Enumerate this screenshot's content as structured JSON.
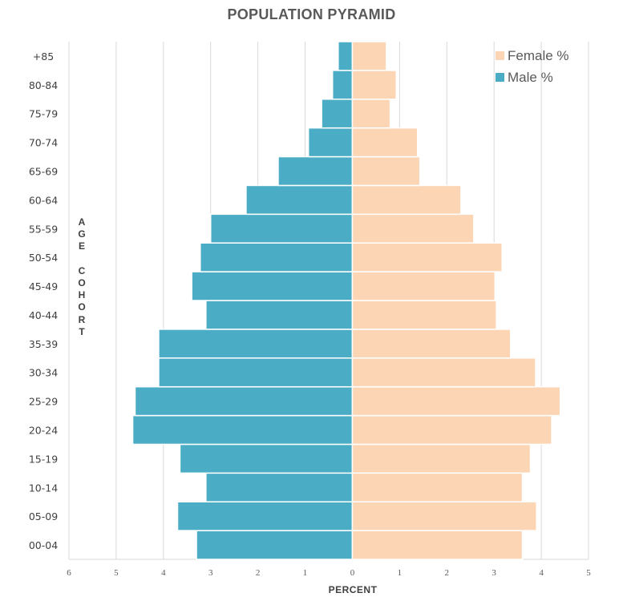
{
  "chart_data": {
    "type": "bar",
    "orientation": "horizontal",
    "title": "POPULATION PYRAMID",
    "xlabel": "PERCENT",
    "ylabel": "AGE COHORT",
    "ylabel_display": "A\nG\nE\n\nC\nO\nH\nO\nR\nT",
    "categories": [
      "00-04",
      "05-09",
      "10-14",
      "15-19",
      "20-24",
      "25-29",
      "30-34",
      "35-39",
      "40-44",
      "45-49",
      "50-54",
      "55-59",
      "60-64",
      "65-69",
      "70-74",
      "75-79",
      "80-84",
      "+85"
    ],
    "series": [
      {
        "name": "Male %",
        "color": "#4bacc6",
        "side": "left",
        "values": [
          3.3,
          3.7,
          3.1,
          3.65,
          4.65,
          4.6,
          4.1,
          4.1,
          3.1,
          3.4,
          3.22,
          3.0,
          2.25,
          1.57,
          0.93,
          0.65,
          0.42,
          0.3
        ]
      },
      {
        "name": "Female %",
        "color": "#fcd5b4",
        "side": "right",
        "values": [
          3.6,
          3.9,
          3.6,
          3.77,
          4.22,
          4.4,
          3.88,
          3.35,
          3.05,
          3.02,
          3.17,
          2.57,
          2.3,
          1.43,
          1.38,
          0.8,
          0.93,
          0.72
        ]
      }
    ],
    "xlim": [
      -6,
      5
    ],
    "xticks": [
      -6,
      -5,
      -4,
      -3,
      -2,
      -1,
      0,
      1,
      2,
      3,
      4,
      5
    ],
    "xtick_labels": [
      "6",
      "5",
      "4",
      "3",
      "2",
      "1",
      "0",
      "1",
      "2",
      "3",
      "4",
      "5"
    ],
    "grid": "vertical",
    "legend": "top-right",
    "legend_order": [
      "Female %",
      "Male %"
    ]
  }
}
